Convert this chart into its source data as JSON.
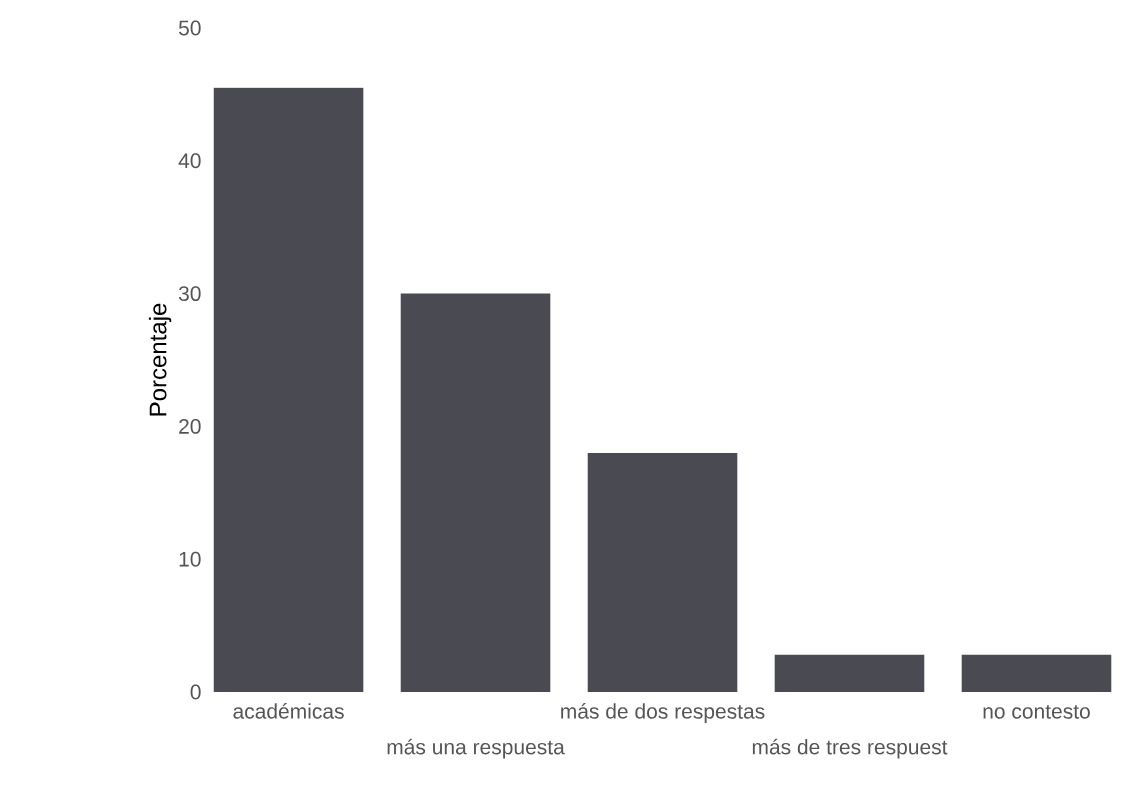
{
  "chart_data": {
    "type": "bar",
    "ylabel": "Porcentaje",
    "categories": [
      "académicas",
      "más una respuesta",
      "más de dos respestas",
      "más de tres respuest",
      "no contesto"
    ],
    "values": [
      45.5,
      30,
      18,
      2.8,
      2.8
    ],
    "color": "#4a4a52",
    "ylim": [
      0,
      50
    ],
    "yticks": [
      0,
      10,
      20,
      30,
      40,
      50
    ],
    "grid": false
  }
}
